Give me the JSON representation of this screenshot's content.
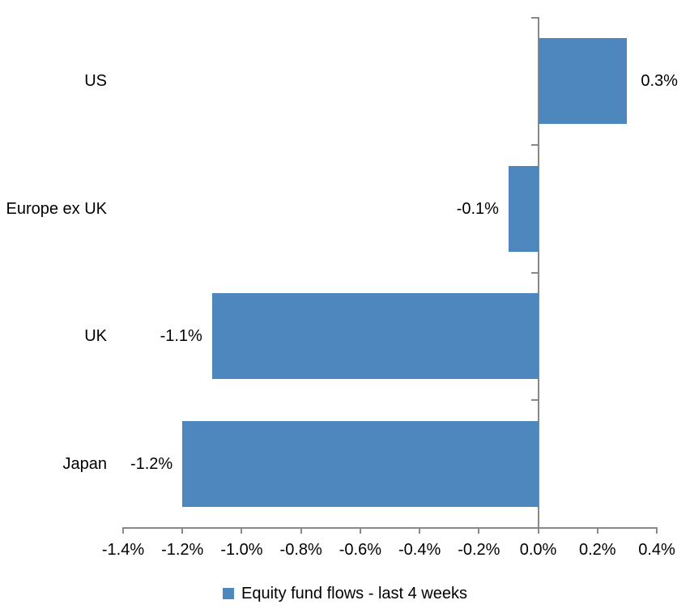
{
  "chart_data": {
    "type": "bar",
    "orientation": "horizontal",
    "title": "",
    "categories": [
      "US",
      "Europe ex UK",
      "UK",
      "Japan"
    ],
    "series": [
      {
        "name": "Equity fund flows - last 4 weeks",
        "values": [
          0.3,
          -0.1,
          -1.1,
          -1.2
        ],
        "data_labels": [
          "0.3%",
          "-0.1%",
          "-1.1%",
          "-1.2%"
        ]
      }
    ],
    "xlabel": "",
    "ylabel": "",
    "xlim": [
      -1.4,
      0.4
    ],
    "x_ticks": {
      "values": [
        -1.4,
        -1.2,
        -1.0,
        -0.8,
        -0.6,
        -0.4,
        -0.2,
        0.0,
        0.2,
        0.4
      ],
      "labels": [
        "-1.4%",
        "-1.2%",
        "-1.0%",
        "-0.8%",
        "-0.6%",
        "-0.4%",
        "-0.2%",
        "0.0%",
        "0.2%",
        "0.4%"
      ]
    },
    "grid": false,
    "legend": {
      "position": "bottom",
      "entries": [
        "Equity fund flows - last 4 weeks"
      ]
    },
    "colors": {
      "bar": "#4E86BE",
      "axis": "#898989",
      "text": "#000000",
      "background": "#FFFFFF"
    }
  }
}
